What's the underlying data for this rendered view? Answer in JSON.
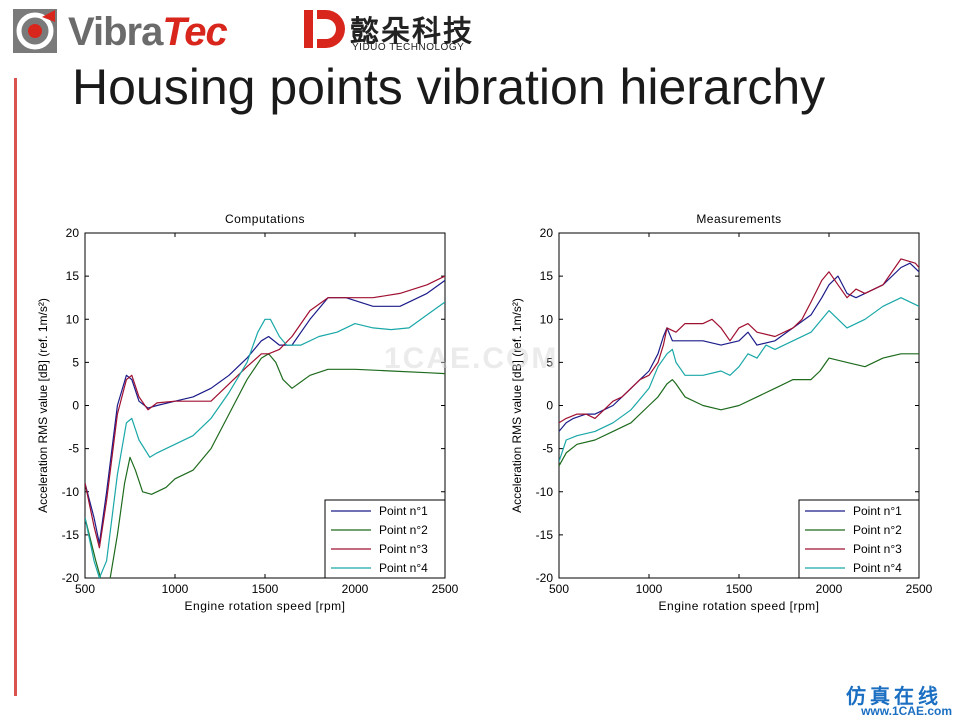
{
  "header": {
    "logo_vibratec_part1": "Vibra",
    "logo_vibratec_part2": "Tec",
    "logo_yiduo_cn": "懿朵科技",
    "logo_yiduo_en": "YIDUO TECHNOLOGY"
  },
  "slide": {
    "title": "Housing points vibration hierarchy"
  },
  "watermark": "1CAE.COM",
  "footer": {
    "cn": "仿真在线",
    "url": "www.1CAE.com"
  },
  "colors": {
    "p1": "#1c1c8a",
    "p2": "#1e6b1e",
    "p3": "#a01030",
    "p4": "#1aa7a7",
    "accent": "#d9534f"
  },
  "chart_data": [
    {
      "type": "line",
      "title": "Computations",
      "xlabel": "Engine rotation speed [rpm]",
      "ylabel": "Acceleration RMS value [dB] (ref. 1m/s²)",
      "xlim": [
        500,
        2500
      ],
      "ylim": [
        -20,
        20
      ],
      "xticks": [
        "500",
        "1000",
        "1500",
        "2000",
        "2500"
      ],
      "yticks": [
        "20",
        "15",
        "10",
        "5",
        "0",
        "-5",
        "-10",
        "-15",
        "-20"
      ],
      "legend_position": "bottom-right",
      "series": [
        {
          "name": "Point n°1",
          "color": "#1c1c8a",
          "x": [
            500,
            550,
            580,
            620,
            680,
            730,
            760,
            800,
            850,
            900,
            1000,
            1100,
            1200,
            1300,
            1400,
            1480,
            1520,
            1580,
            1650,
            1750,
            1850,
            1950,
            2100,
            2250,
            2400,
            2500
          ],
          "y": [
            -9,
            -13,
            -16,
            -10,
            0,
            3.5,
            3,
            0.5,
            -0.3,
            0,
            0.5,
            1,
            2,
            3.5,
            5.5,
            7.5,
            8,
            7,
            7,
            10,
            12.5,
            12.5,
            11.5,
            11.5,
            13,
            14.5
          ]
        },
        {
          "name": "Point n°2",
          "color": "#1e6b1e",
          "x": [
            500,
            560,
            600,
            640,
            680,
            720,
            750,
            780,
            820,
            870,
            950,
            1000,
            1100,
            1200,
            1300,
            1400,
            1480,
            1520,
            1560,
            1600,
            1650,
            1750,
            1850,
            2000,
            2200,
            2400,
            2500
          ],
          "y": [
            -13,
            -18,
            -21,
            -20,
            -15,
            -9,
            -6,
            -7.5,
            -10,
            -10.3,
            -9.5,
            -8.5,
            -7.5,
            -5,
            -1,
            3,
            5.5,
            6,
            5,
            3,
            2,
            3.5,
            4.2,
            4.2,
            4,
            3.8,
            3.7
          ]
        },
        {
          "name": "Point n°3",
          "color": "#a01030",
          "x": [
            500,
            550,
            580,
            620,
            680,
            730,
            760,
            800,
            850,
            900,
            1000,
            1100,
            1200,
            1300,
            1400,
            1480,
            1520,
            1580,
            1650,
            1750,
            1850,
            1950,
            2100,
            2250,
            2400,
            2500
          ],
          "y": [
            -9,
            -14,
            -16.5,
            -11,
            -1,
            3,
            3.5,
            1,
            -0.5,
            0.3,
            0.5,
            0.5,
            0.5,
            2.5,
            4.5,
            6,
            6,
            6.5,
            8,
            11,
            12.5,
            12.5,
            12.5,
            13,
            14,
            15
          ]
        },
        {
          "name": "Point n°4",
          "color": "#1aa7a7",
          "x": [
            500,
            550,
            580,
            620,
            680,
            730,
            760,
            800,
            860,
            900,
            1000,
            1100,
            1200,
            1300,
            1400,
            1460,
            1500,
            1530,
            1580,
            1620,
            1700,
            1800,
            1900,
            2000,
            2100,
            2200,
            2300,
            2400,
            2500
          ],
          "y": [
            -13,
            -18,
            -20,
            -18,
            -8,
            -2,
            -1.5,
            -4,
            -6,
            -5.5,
            -4.5,
            -3.5,
            -1.5,
            1.5,
            5,
            8.5,
            10,
            10,
            8,
            7,
            7,
            8,
            8.5,
            9.5,
            9,
            8.8,
            9,
            10.5,
            12
          ]
        }
      ]
    },
    {
      "type": "line",
      "title": "Measurements",
      "xlabel": "Engine rotation speed [rpm]",
      "ylabel": "Acceleration RMS value [dB] (ref. 1m/s²)",
      "xlim": [
        500,
        2500
      ],
      "ylim": [
        -20,
        20
      ],
      "xticks": [
        "500",
        "1000",
        "1500",
        "2000",
        "2500"
      ],
      "yticks": [
        "20",
        "15",
        "10",
        "5",
        "0",
        "-5",
        "-10",
        "-15",
        "-20"
      ],
      "legend_position": "bottom-right",
      "series": [
        {
          "name": "Point n°1",
          "color": "#1c1c8a",
          "x": [
            500,
            540,
            580,
            650,
            700,
            750,
            800,
            850,
            900,
            950,
            1000,
            1050,
            1080,
            1100,
            1130,
            1200,
            1250,
            1300,
            1400,
            1500,
            1550,
            1600,
            1700,
            1800,
            1900,
            1960,
            2000,
            2050,
            2100,
            2150,
            2200,
            2300,
            2400,
            2450,
            2500
          ],
          "y": [
            -3,
            -2,
            -1.5,
            -1,
            -1,
            -0.5,
            0,
            1,
            2,
            3,
            4,
            6,
            8,
            9,
            7.5,
            7.5,
            7.5,
            7.5,
            7,
            7.5,
            8.5,
            7,
            7.5,
            9,
            10.5,
            12.5,
            14,
            15,
            13,
            12.5,
            13,
            14,
            16,
            16.5,
            15.5
          ]
        },
        {
          "name": "Point n°2",
          "color": "#1e6b1e",
          "x": [
            500,
            540,
            600,
            700,
            800,
            900,
            1000,
            1050,
            1100,
            1130,
            1150,
            1200,
            1300,
            1400,
            1500,
            1600,
            1700,
            1800,
            1850,
            1900,
            1950,
            2000,
            2100,
            2200,
            2300,
            2400,
            2500
          ],
          "y": [
            -7,
            -5.5,
            -4.5,
            -4,
            -3,
            -2,
            0,
            1,
            2.5,
            3,
            2.5,
            1,
            0,
            -0.5,
            0,
            1,
            2,
            3,
            3,
            3,
            4,
            5.5,
            5,
            4.5,
            5.5,
            6,
            6
          ]
        },
        {
          "name": "Point n°3",
          "color": "#a01030",
          "x": [
            500,
            540,
            600,
            650,
            700,
            750,
            800,
            850,
            900,
            950,
            1000,
            1050,
            1080,
            1100,
            1150,
            1200,
            1300,
            1350,
            1400,
            1450,
            1500,
            1550,
            1600,
            1700,
            1800,
            1850,
            1900,
            1960,
            2000,
            2050,
            2100,
            2150,
            2200,
            2300,
            2400,
            2480,
            2500
          ],
          "y": [
            -2,
            -1.5,
            -1,
            -1,
            -1.5,
            -0.5,
            0.5,
            1,
            2,
            3,
            3.5,
            5,
            7,
            9,
            8.5,
            9.5,
            9.5,
            10,
            9,
            7.5,
            9,
            9.5,
            8.5,
            8,
            9,
            10,
            12,
            14.5,
            15.5,
            14,
            12.5,
            13.5,
            13,
            14,
            17,
            16.5,
            16
          ]
        },
        {
          "name": "Point n°4",
          "color": "#1aa7a7",
          "x": [
            500,
            540,
            600,
            700,
            800,
            900,
            1000,
            1050,
            1100,
            1130,
            1150,
            1200,
            1300,
            1400,
            1450,
            1500,
            1550,
            1600,
            1650,
            1700,
            1800,
            1900,
            2000,
            2100,
            2200,
            2300,
            2400,
            2500
          ],
          "y": [
            -6.5,
            -4,
            -3.5,
            -3,
            -2,
            -0.5,
            2,
            4.5,
            6,
            6.5,
            5,
            3.5,
            3.5,
            4,
            3.5,
            4.5,
            6,
            5.5,
            7,
            6.5,
            7.5,
            8.5,
            11,
            9,
            10,
            11.5,
            12.5,
            11.5
          ]
        }
      ]
    }
  ]
}
